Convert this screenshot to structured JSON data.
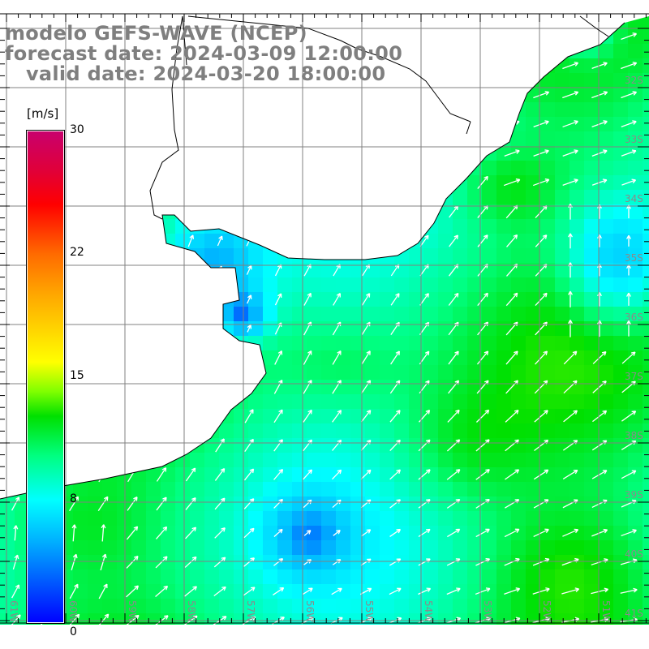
{
  "title": {
    "model": "modelo GEFS-WAVE (NCEP)",
    "forecast": "forecast date: 2024-03-09 12:00:00",
    "valid": "   valid date: 2024-03-20 18:00:00"
  },
  "colorbar": {
    "units": "[m/s]",
    "ticks": [
      "30",
      "22",
      "15",
      "8",
      "0"
    ],
    "tick_values": [
      30,
      22,
      15,
      8,
      0
    ]
  },
  "lat_labels": [
    "32S",
    "33S",
    "34S",
    "35S",
    "36S",
    "37S",
    "38S",
    "39S",
    "40S",
    "41S"
  ],
  "lon_labels": [
    "61W",
    "60W",
    "59W",
    "58W",
    "57W",
    "56W",
    "55W",
    "54W",
    "53W",
    "52W",
    "51W"
  ],
  "colors": {
    "land": "#ffffff",
    "grid": "#808080",
    "label": "#8a8a8a",
    "arrow": "#ffffff"
  }
}
